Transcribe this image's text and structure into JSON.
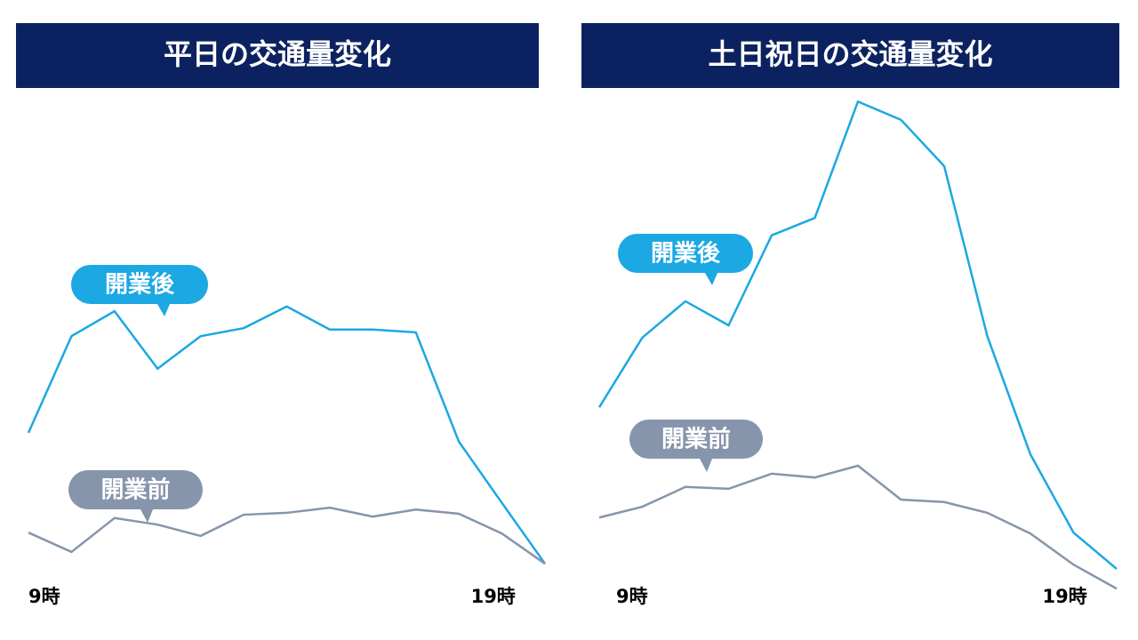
{
  "chart_data": [
    {
      "type": "line",
      "title": "平日の交通量変化",
      "categories": [
        "9時",
        null,
        null,
        null,
        null,
        null,
        null,
        null,
        null,
        null,
        null,
        "19時",
        null
      ],
      "ylim": [
        0,
        100
      ],
      "series": [
        {
          "name": "開業後",
          "color": "#1ba8e3",
          "values": [
            28.9,
            49.4,
            54.7,
            42.5,
            49.4,
            51.1,
            55.7,
            50.8,
            50.8,
            50.2,
            27,
            14,
            1.1
          ]
        },
        {
          "name": "開業前",
          "color": "#8695ab",
          "values": [
            7.7,
            3.6,
            10.8,
            9.4,
            7,
            11.5,
            11.9,
            13,
            11.1,
            12.6,
            11.7,
            7.5,
            1.1
          ]
        }
      ]
    },
    {
      "type": "line",
      "title": "土日祝日の交通量変化",
      "categories": [
        "9時",
        null,
        null,
        null,
        null,
        null,
        null,
        null,
        null,
        null,
        null,
        "19時",
        null
      ],
      "ylim": [
        -5,
        100
      ],
      "series": [
        {
          "name": "開業後",
          "color": "#1ba8e3",
          "values": [
            34.3,
            49.1,
            56.8,
            51.7,
            70.8,
            74.5,
            99.2,
            95.3,
            85.5,
            49.4,
            24.3,
            7.7,
            0
          ]
        },
        {
          "name": "開業前",
          "color": "#8695ab",
          "values": [
            10.9,
            13.2,
            17.4,
            17,
            20.2,
            19.4,
            21.9,
            14.7,
            14.2,
            11.9,
            7.5,
            0.9,
            -4.2
          ]
        }
      ]
    }
  ]
}
